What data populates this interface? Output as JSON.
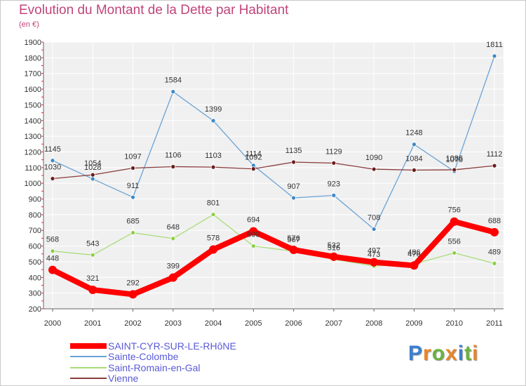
{
  "title": "Evolution du Montant de la Dette par Habitant",
  "subtitle": "(en €)",
  "logo": {
    "letters": [
      {
        "ch": "P",
        "color": "#3a7fd0"
      },
      {
        "ch": "r",
        "color": "#e8862a"
      },
      {
        "ch": "o",
        "color": "#6ab33d"
      },
      {
        "ch": "x",
        "color": "#e8862a"
      },
      {
        "ch": "i",
        "color": "#3a7fd0"
      },
      {
        "ch": "t",
        "color": "#6ab33d"
      },
      {
        "ch": "i",
        "color": "#e8862a"
      }
    ]
  },
  "chart_data": {
    "type": "line",
    "title": "Evolution du Montant de la Dette par Habitant",
    "subtitle": "(en €)",
    "xlabel": "",
    "ylabel": "",
    "x": [
      "2000",
      "2001",
      "2002",
      "2003",
      "2004",
      "2005",
      "2006",
      "2007",
      "2008",
      "2009",
      "2010",
      "2011"
    ],
    "ylim": [
      200,
      1900
    ],
    "yticks": [
      200,
      300,
      400,
      500,
      600,
      700,
      800,
      900,
      1000,
      1100,
      1200,
      1300,
      1400,
      1500,
      1600,
      1700,
      1800,
      1900
    ],
    "grid": true,
    "legend": "bottom-left",
    "series": [
      {
        "name": "Sainte-Colombe",
        "color": "#6aa3d5",
        "marker": "#3e89c7",
        "values": [
          1145,
          1028,
          911,
          1584,
          1399,
          1114,
          907,
          923,
          708,
          1248,
          1076,
          1811
        ]
      },
      {
        "name": "Saint-Romain-en-Gal",
        "color": "#a8dc78",
        "marker": "#8ccf44",
        "values": [
          568,
          543,
          685,
          648,
          801,
          600,
          567,
          516,
          473,
          486,
          556,
          489
        ]
      },
      {
        "name": "Vienne",
        "color": "#8a3b3b",
        "marker": "#6b1d1d",
        "values": [
          1030,
          1054,
          1097,
          1106,
          1103,
          1092,
          1135,
          1129,
          1090,
          1084,
          1086,
          1112
        ]
      },
      {
        "name": "SAINT-CYR-SUR-LE-RHôNE",
        "color": "#ff0000",
        "marker": "#ff0000",
        "values": [
          448,
          321,
          292,
          399,
          578,
          694,
          576,
          532,
          497,
          476,
          756,
          688
        ]
      }
    ],
    "legend_order": [
      "SAINT-CYR-SUR-LE-RHôNE",
      "Sainte-Colombe",
      "Saint-Romain-en-Gal",
      "Vienne"
    ]
  }
}
